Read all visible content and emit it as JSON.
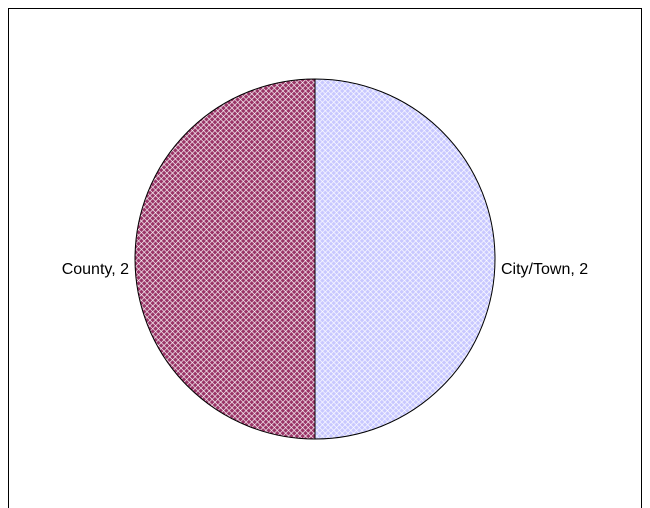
{
  "chart_data": {
    "type": "pie",
    "categories": [
      "City/Town",
      "County"
    ],
    "values": [
      2,
      2
    ],
    "value_labels": [
      "City/Town, 2",
      "County, 2"
    ],
    "colors": [
      "#c8c8ff",
      "#993366"
    ]
  }
}
